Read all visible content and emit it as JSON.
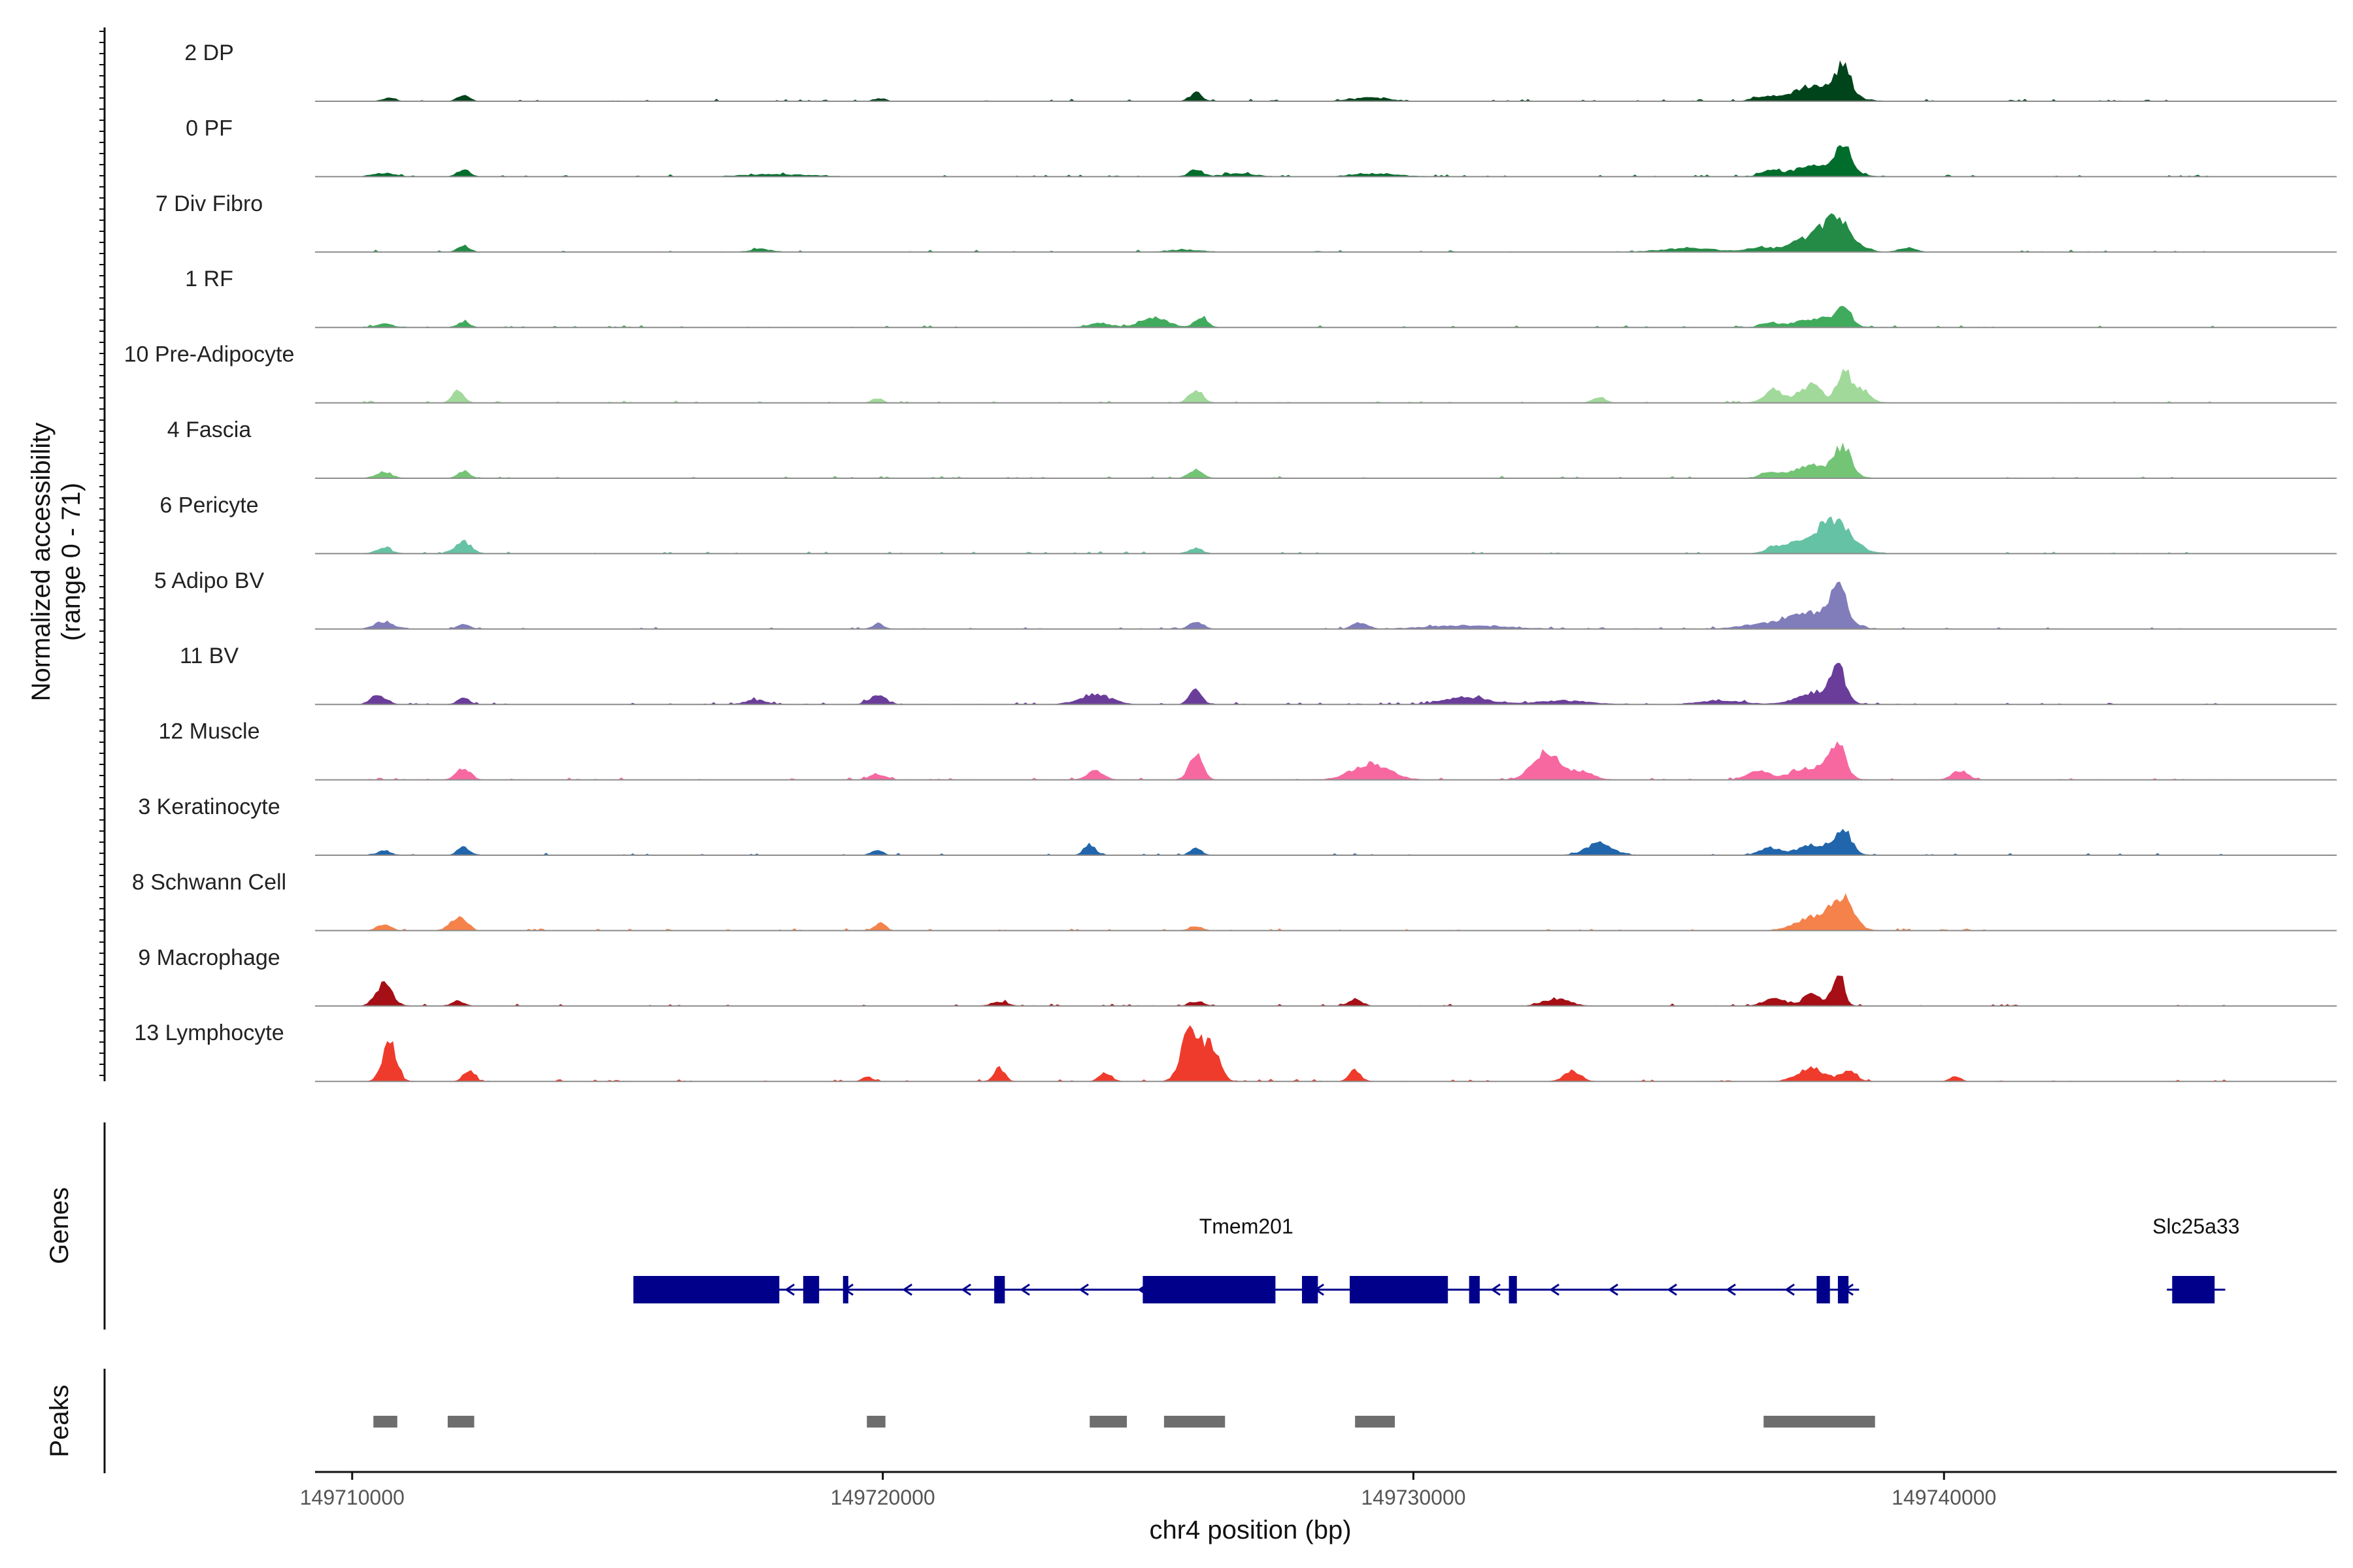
{
  "chart_data": {
    "type": "area",
    "xlabel": "chr4 position (bp)",
    "ylabel": "Normalized accessibility (range 0 - 71)",
    "ylim": [
      0,
      71
    ],
    "xlim": [
      149709300,
      149747400
    ],
    "x_ticks": [
      149710000,
      149720000,
      149730000,
      149740000
    ],
    "x_tick_labels": [
      "149710000",
      "149720000",
      "149730000",
      "149740000"
    ],
    "tracks": [
      {
        "name": "2 DP",
        "color": "#00441b",
        "peaks": [
          [
            149710700,
            5,
            120
          ],
          [
            149712100,
            9,
            110
          ],
          [
            149719950,
            4,
            100
          ],
          [
            149725900,
            10,
            120
          ],
          [
            149729200,
            5,
            350
          ],
          [
            149736600,
            6,
            200
          ],
          [
            149737400,
            8,
            300
          ],
          [
            149738100,
            40,
            140
          ],
          [
            149737700,
            15,
            450
          ]
        ]
      },
      {
        "name": "0 PF",
        "color": "#006d2c",
        "peaks": [
          [
            149710600,
            5,
            200
          ],
          [
            149712100,
            10,
            110
          ],
          [
            149718000,
            3,
            600
          ],
          [
            149725900,
            10,
            120
          ],
          [
            149726700,
            4,
            300
          ],
          [
            149729300,
            4,
            400
          ],
          [
            149736700,
            7,
            150
          ],
          [
            149738100,
            34,
            150
          ],
          [
            149737600,
            14,
            450
          ]
        ]
      },
      {
        "name": "7 Div Fibro",
        "color": "#238b45",
        "peaks": [
          [
            149712100,
            9,
            110
          ],
          [
            149717700,
            4,
            200
          ],
          [
            149725700,
            3,
            300
          ],
          [
            149735200,
            5,
            500
          ],
          [
            149736500,
            6,
            200
          ],
          [
            149738000,
            36,
            280
          ],
          [
            149737500,
            18,
            400
          ],
          [
            149739300,
            6,
            150
          ]
        ]
      },
      {
        "name": "1 RF",
        "color": "#41ab5d",
        "peaks": [
          [
            149710600,
            5,
            150
          ],
          [
            149712100,
            8,
            110
          ],
          [
            149724100,
            6,
            200
          ],
          [
            149725100,
            14,
            250
          ],
          [
            149726000,
            14,
            120
          ],
          [
            149736700,
            6,
            150
          ],
          [
            149738100,
            30,
            130
          ],
          [
            149737600,
            12,
            400
          ]
        ]
      },
      {
        "name": "10 Pre-Adipocyte",
        "color": "#a1d99b",
        "peaks": [
          [
            149712000,
            16,
            110
          ],
          [
            149719900,
            6,
            100
          ],
          [
            149725900,
            18,
            130
          ],
          [
            149736800,
            18,
            180
          ],
          [
            149737500,
            25,
            200
          ],
          [
            149738100,
            40,
            120
          ],
          [
            149738400,
            20,
            180
          ],
          [
            149733500,
            8,
            120
          ]
        ]
      },
      {
        "name": "4 Fascia",
        "color": "#74c476",
        "peaks": [
          [
            149710600,
            7,
            150
          ],
          [
            149712100,
            10,
            110
          ],
          [
            149725900,
            11,
            130
          ],
          [
            149736700,
            8,
            150
          ],
          [
            149738100,
            36,
            140
          ],
          [
            149737600,
            18,
            420
          ]
        ]
      },
      {
        "name": "6 Pericyte",
        "color": "#66c2a4",
        "peaks": [
          [
            149710600,
            7,
            150
          ],
          [
            149712100,
            16,
            150
          ],
          [
            149725900,
            8,
            120
          ],
          [
            149738000,
            34,
            300
          ],
          [
            149737500,
            20,
            400
          ],
          [
            149736800,
            7,
            150
          ]
        ]
      },
      {
        "name": "5 Adipo BV",
        "color": "#807dba",
        "peaks": [
          [
            149710600,
            10,
            180
          ],
          [
            149712100,
            7,
            110
          ],
          [
            149719900,
            7,
            100
          ],
          [
            149725900,
            11,
            120
          ],
          [
            149729000,
            9,
            140
          ],
          [
            149731000,
            5,
            700
          ],
          [
            149736500,
            5,
            400
          ],
          [
            149738000,
            52,
            150
          ],
          [
            149737500,
            22,
            450
          ]
        ]
      },
      {
        "name": "11 BV",
        "color": "#6a3d9a",
        "peaks": [
          [
            149710500,
            12,
            150
          ],
          [
            149712100,
            9,
            110
          ],
          [
            149719900,
            13,
            150
          ],
          [
            149725900,
            22,
            110
          ],
          [
            149724000,
            13,
            300
          ],
          [
            149731000,
            10,
            400
          ],
          [
            149732800,
            5,
            500
          ],
          [
            149735800,
            5,
            400
          ],
          [
            149738000,
            50,
            130
          ],
          [
            149737600,
            16,
            350
          ],
          [
            149717600,
            6,
            200
          ]
        ]
      },
      {
        "name": "12 Muscle",
        "color": "#f768a1",
        "peaks": [
          [
            149712100,
            16,
            130
          ],
          [
            149719900,
            8,
            150
          ],
          [
            149725900,
            36,
            120
          ],
          [
            149729200,
            22,
            350
          ],
          [
            149732500,
            38,
            250
          ],
          [
            149733200,
            12,
            200
          ],
          [
            149736500,
            11,
            200
          ],
          [
            149738000,
            44,
            150
          ],
          [
            149737500,
            17,
            350
          ],
          [
            149740300,
            13,
            150
          ],
          [
            149724000,
            12,
            150
          ]
        ]
      },
      {
        "name": "3 Keratinocyte",
        "color": "#2166ac",
        "peaks": [
          [
            149710600,
            7,
            120
          ],
          [
            149712100,
            11,
            110
          ],
          [
            149719900,
            7,
            100
          ],
          [
            149723900,
            15,
            110
          ],
          [
            149725900,
            9,
            110
          ],
          [
            149733500,
            16,
            250
          ],
          [
            149736700,
            10,
            180
          ],
          [
            149738100,
            32,
            150
          ],
          [
            149737600,
            14,
            350
          ]
        ]
      },
      {
        "name": "8 Schwann Cell",
        "color": "#f4824a",
        "peaks": [
          [
            149710600,
            8,
            130
          ],
          [
            149712000,
            18,
            150
          ],
          [
            149719950,
            11,
            100
          ],
          [
            149725900,
            6,
            120
          ],
          [
            149738100,
            38,
            200
          ],
          [
            149737600,
            20,
            350
          ]
        ]
      },
      {
        "name": "9 Macrophage",
        "color": "#a50f15",
        "peaks": [
          [
            149710600,
            32,
            150
          ],
          [
            149712000,
            7,
            110
          ],
          [
            149725900,
            6,
            130
          ],
          [
            149728900,
            9,
            130
          ],
          [
            149732700,
            10,
            250
          ],
          [
            149736800,
            11,
            200
          ],
          [
            149737500,
            18,
            150
          ],
          [
            149738000,
            46,
            110
          ],
          [
            149722200,
            6,
            150
          ]
        ]
      },
      {
        "name": "13 Lymphocyte",
        "color": "#ef3b2c",
        "peaks": [
          [
            149710700,
            57,
            130
          ],
          [
            149712200,
            15,
            100
          ],
          [
            149722200,
            18,
            100
          ],
          [
            149724200,
            12,
            110
          ],
          [
            149725800,
            71,
            170
          ],
          [
            149726200,
            45,
            150
          ],
          [
            149728900,
            15,
            110
          ],
          [
            149733000,
            15,
            150
          ],
          [
            149737500,
            18,
            250
          ],
          [
            149738200,
            14,
            150
          ],
          [
            149740200,
            7,
            100
          ],
          [
            149719700,
            6,
            90
          ]
        ]
      }
    ],
    "genes": [
      {
        "name": "Tmem201",
        "start": 149715300,
        "end": 149738400,
        "strand": "-",
        "exons": [
          [
            149715300,
            149718050
          ],
          [
            149718500,
            149718800
          ],
          [
            149719250,
            149719350
          ],
          [
            149722100,
            149722300
          ],
          [
            149724900,
            149727400
          ],
          [
            149727900,
            149728200
          ],
          [
            149728800,
            149730650
          ],
          [
            149731050,
            149731250
          ],
          [
            149731800,
            149731950
          ],
          [
            149737600,
            149737850
          ],
          [
            149738000,
            149738200
          ]
        ]
      },
      {
        "name": "Slc25a33",
        "start": 149744200,
        "end": 149745300,
        "strand": "-",
        "exons": [
          [
            149744300,
            149745100
          ]
        ]
      }
    ],
    "peaks_track": [
      [
        149710400,
        149710850
      ],
      [
        149711800,
        149712300
      ],
      [
        149719700,
        149720050
      ],
      [
        149723900,
        149724600
      ],
      [
        149725300,
        149726450
      ],
      [
        149728900,
        149729650
      ],
      [
        149736600,
        149738700
      ]
    ],
    "side_labels": {
      "genes": "Genes",
      "peaks": "Peaks"
    },
    "colors": {
      "axis": "#111111",
      "baseline": "#8c8c8c",
      "gene": "#00008b",
      "peak_bar": "#6e6e6e"
    }
  }
}
